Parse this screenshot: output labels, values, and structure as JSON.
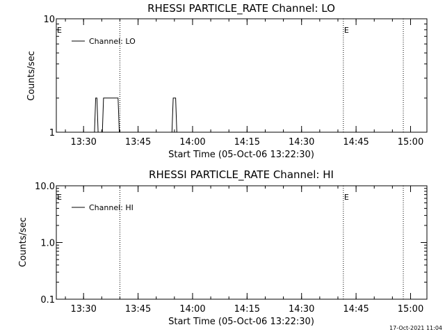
{
  "timestamp": "17-Oct-2021 11:04",
  "chart_data": [
    {
      "type": "line",
      "title": "RHESSI PARTICLE_RATE Channel: LO",
      "xlabel": "Start Time (05-Oct-06 13:22:30)",
      "ylabel": "Counts/sec",
      "yscale": "log",
      "xlim": [
        "13:22:30",
        "15:04:30"
      ],
      "ylim": [
        1,
        10
      ],
      "x_ticks": [
        "13:30",
        "13:45",
        "14:00",
        "14:15",
        "14:30",
        "14:45",
        "15:00"
      ],
      "y_ticks": [
        "1",
        "10"
      ],
      "legend": {
        "label": "Channel: LO",
        "position": "top-left"
      },
      "vlines": [
        "13:40:00",
        "14:41:30",
        "14:58:00"
      ],
      "markers": [
        {
          "label": "E",
          "x": "13:22:30"
        },
        {
          "label": "E",
          "x": "14:41:30"
        }
      ],
      "series": [
        {
          "name": "Channel: LO",
          "x": [
            "13:33:00",
            "13:33:20",
            "13:33:40",
            "13:34:00",
            "13:35:10",
            "13:35:30",
            "13:36:10",
            "13:36:30",
            "13:39:30",
            "13:39:50",
            "13:54:20",
            "13:54:40",
            "13:55:20",
            "13:55:40"
          ],
          "y": [
            1,
            2,
            2,
            1,
            1,
            2,
            2,
            2,
            2,
            1,
            1,
            2,
            2,
            1
          ]
        }
      ]
    },
    {
      "type": "line",
      "title": "RHESSI PARTICLE_RATE Channel: HI",
      "xlabel": "Start Time (05-Oct-06 13:22:30)",
      "ylabel": "Counts/sec",
      "yscale": "log",
      "xlim": [
        "13:22:30",
        "15:04:30"
      ],
      "ylim": [
        0.1,
        10
      ],
      "x_ticks": [
        "13:30",
        "13:45",
        "14:00",
        "14:15",
        "14:30",
        "14:45",
        "15:00"
      ],
      "y_ticks": [
        "0.1",
        "1.0",
        "10.0"
      ],
      "legend": {
        "label": "Channel: HI",
        "position": "top-left"
      },
      "vlines": [
        "13:40:00",
        "14:41:30",
        "14:58:00"
      ],
      "markers": [
        {
          "label": "E",
          "x": "13:22:30"
        },
        {
          "label": "E",
          "x": "14:41:30"
        }
      ],
      "series": [
        {
          "name": "Channel: HI",
          "x": [],
          "y": []
        }
      ]
    }
  ]
}
